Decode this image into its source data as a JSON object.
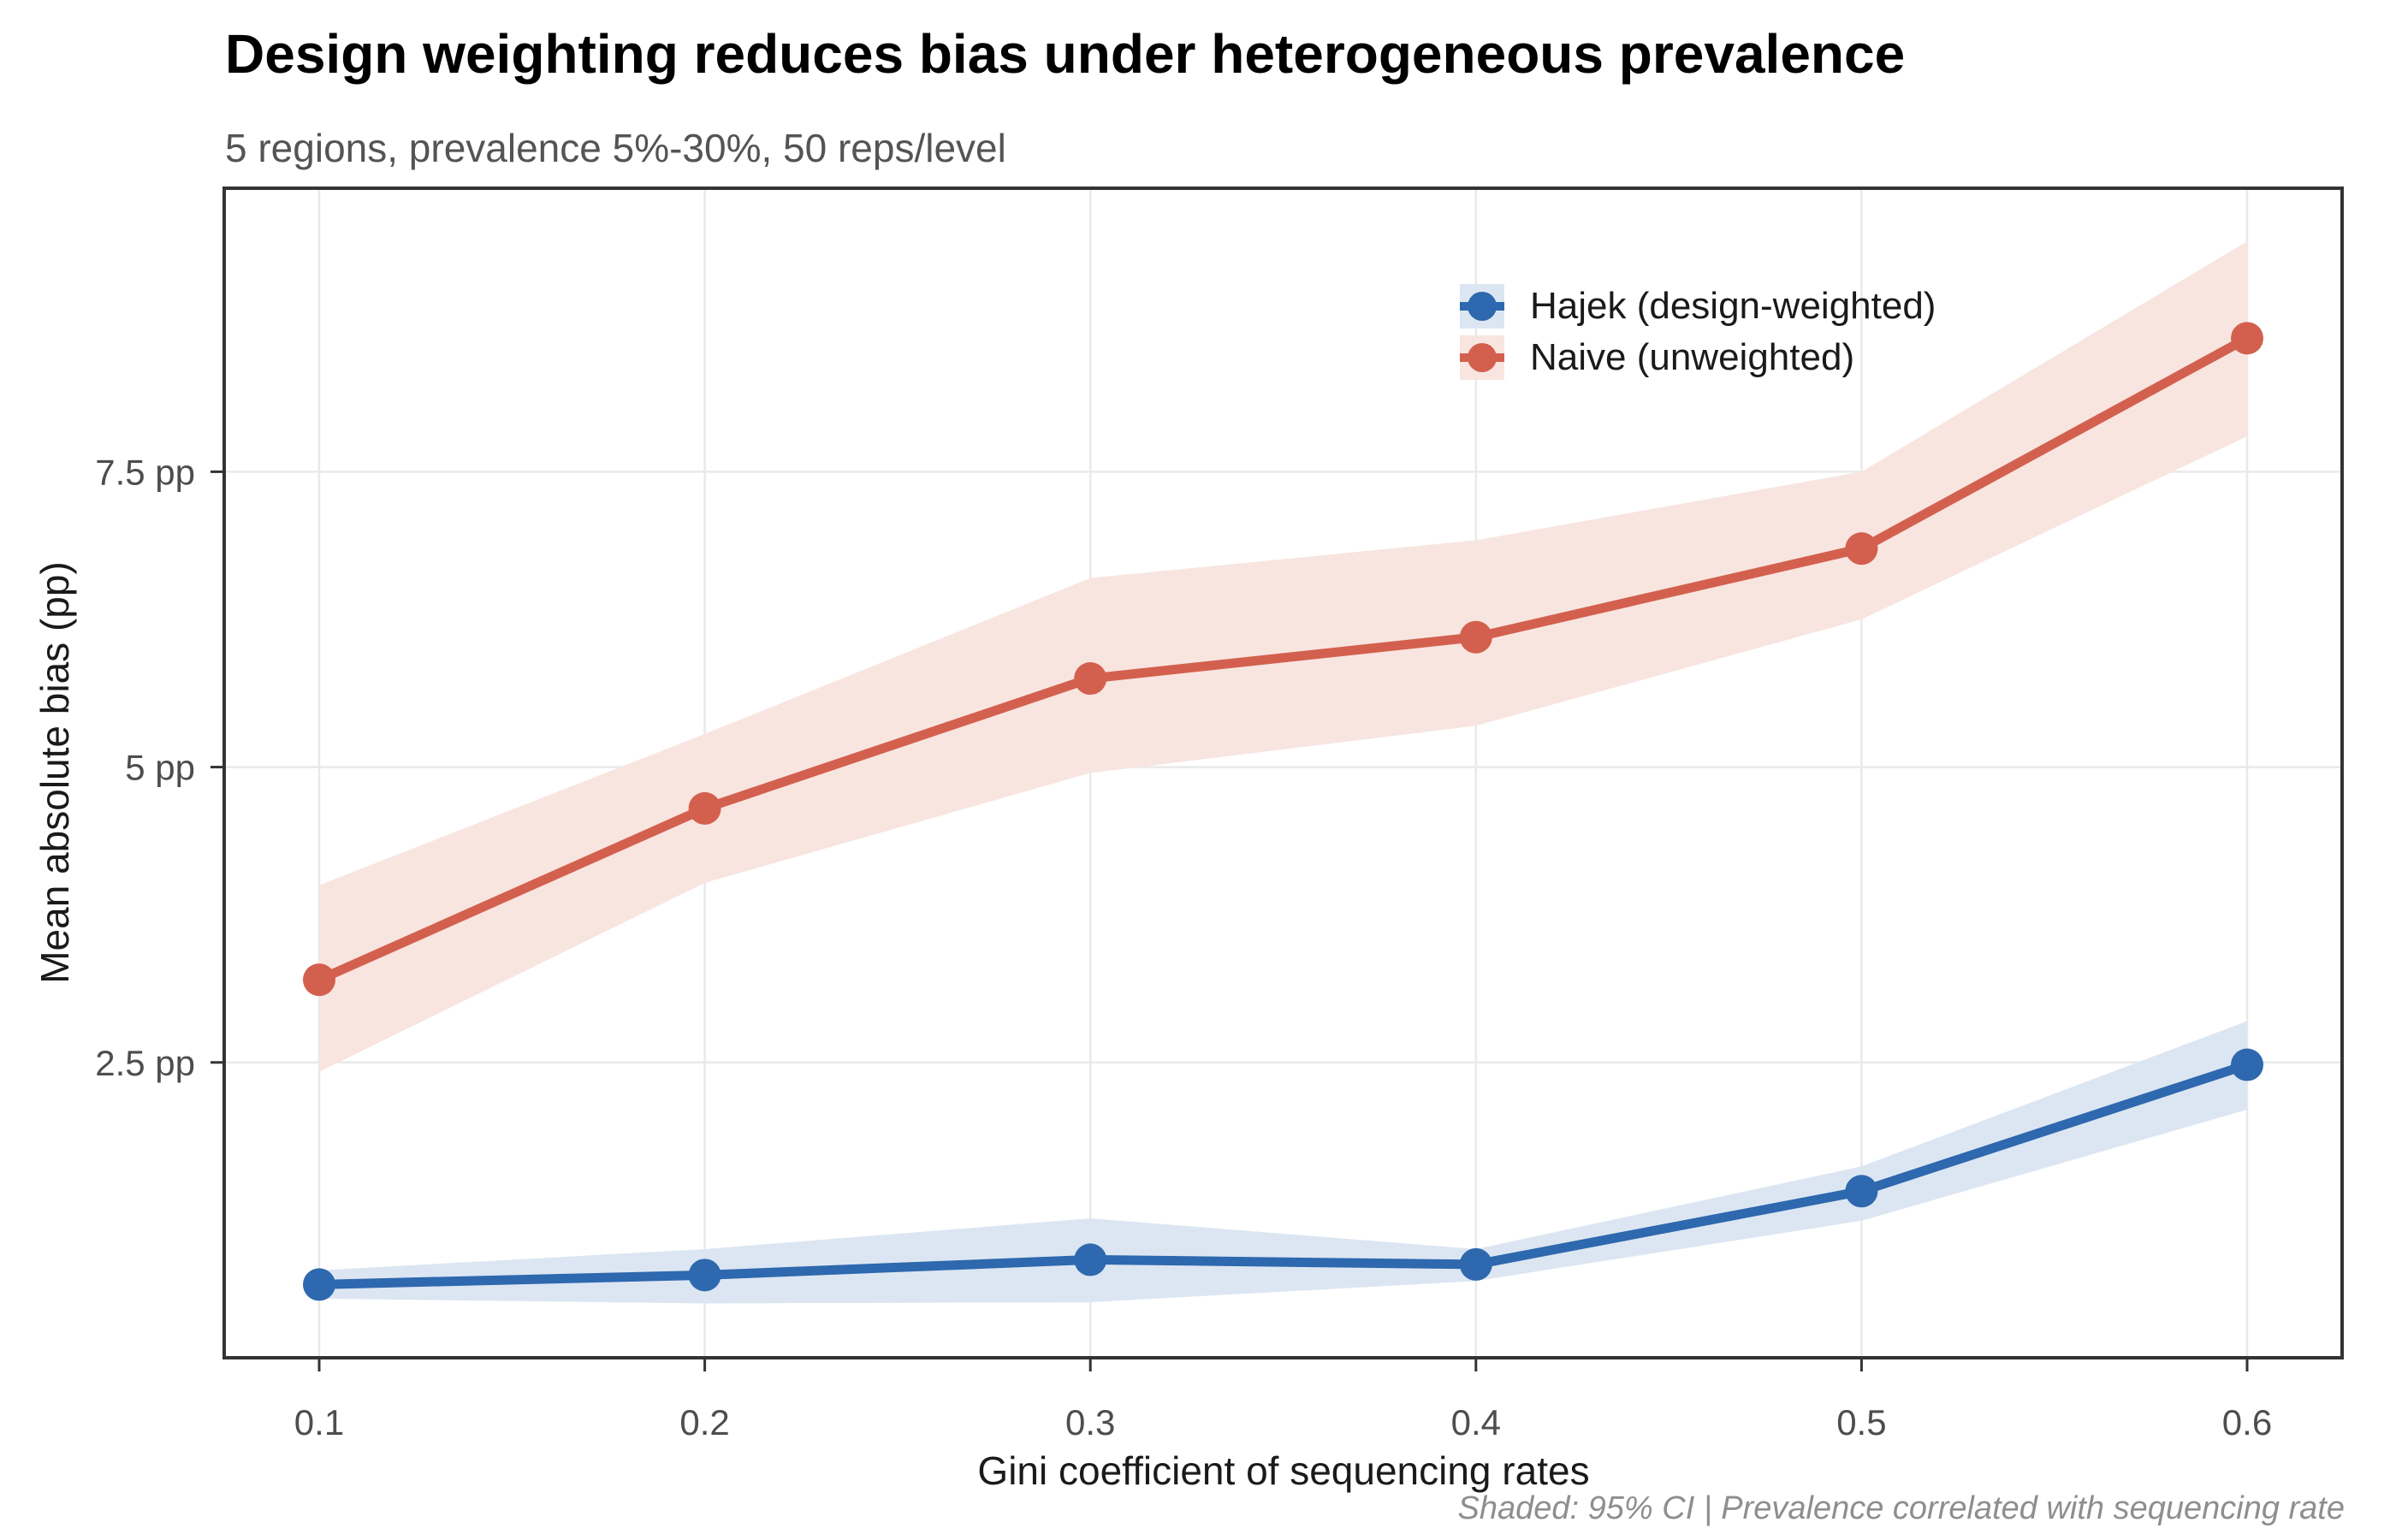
{
  "chart_data": {
    "type": "line",
    "title": "Design weighting reduces bias under heterogeneous prevalence",
    "subtitle": "5 regions, prevalence 5%-30%, 50 reps/level",
    "caption": "Shaded: 95% CI | Prevalence correlated with sequencing rate",
    "xlabel": "Gini coefficient of sequencing rates",
    "ylabel": "Mean absolute bias (pp)",
    "x": [
      0.1,
      0.2,
      0.3,
      0.4,
      0.5,
      0.6
    ],
    "x_tick_labels": [
      "0.1",
      "0.2",
      "0.3",
      "0.4",
      "0.5",
      "0.6"
    ],
    "y_ticks": [
      {
        "value": 2.5,
        "label": "2.5 pp"
      },
      {
        "value": 5,
        "label": "5 pp"
      },
      {
        "value": 7.5,
        "label": "7.5 pp"
      }
    ],
    "ylim": [
      0,
      9.9
    ],
    "grid": "major-only",
    "legend_position": "inside-top-right",
    "shaded_band": "95% CI",
    "colors": {
      "grid": "#e9e9e9",
      "panel_border": "#333333",
      "tick_mark": "#333333",
      "tick_label": "#4d4d4d"
    },
    "series": [
      {
        "name": "Hajek (design-weighted)",
        "color": "#2e68ae",
        "ribbon_color": "#dce6f2",
        "values": [
          0.62,
          0.7,
          0.83,
          0.79,
          1.41,
          2.48
        ],
        "ci_lower": [
          0.5,
          0.46,
          0.47,
          0.65,
          1.16,
          2.1
        ],
        "ci_upper": [
          0.74,
          0.92,
          1.18,
          0.92,
          1.62,
          2.85
        ]
      },
      {
        "name": "Naive (unweighted)",
        "color": "#d3604e",
        "ribbon_color": "#f8e5e0",
        "values": [
          3.2,
          4.65,
          5.75,
          6.1,
          6.85,
          8.63
        ],
        "ci_lower": [
          2.42,
          4.02,
          4.95,
          5.35,
          6.25,
          7.8
        ],
        "ci_upper": [
          4.0,
          5.28,
          6.6,
          6.92,
          7.5,
          9.45
        ]
      }
    ]
  }
}
